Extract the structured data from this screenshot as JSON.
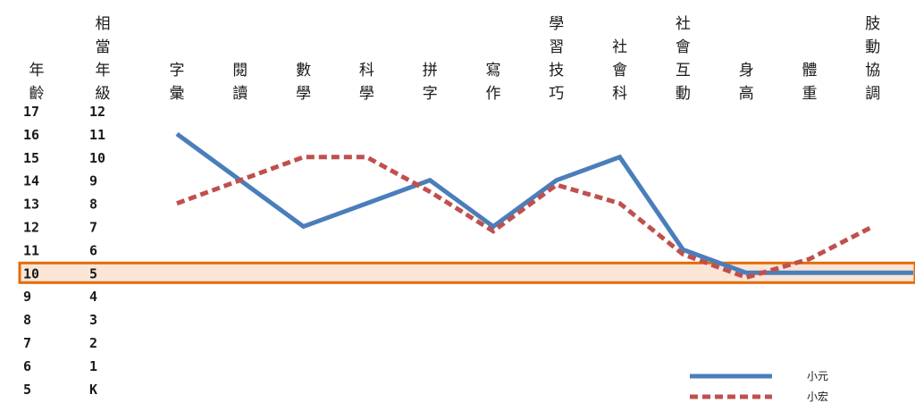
{
  "chart_data": {
    "type": "line",
    "row_headers": [
      {
        "chars": [
          "年",
          "齡"
        ]
      },
      {
        "chars": [
          "相",
          "當",
          "年",
          "級"
        ]
      }
    ],
    "rows": [
      {
        "age": "17",
        "grade": "12"
      },
      {
        "age": "16",
        "grade": "11"
      },
      {
        "age": "15",
        "grade": "10"
      },
      {
        "age": "14",
        "grade": "9"
      },
      {
        "age": "13",
        "grade": "8"
      },
      {
        "age": "12",
        "grade": "7"
      },
      {
        "age": "11",
        "grade": "6"
      },
      {
        "age": "10",
        "grade": "5"
      },
      {
        "age": "9",
        "grade": "4"
      },
      {
        "age": "8",
        "grade": "3"
      },
      {
        "age": "7",
        "grade": "2"
      },
      {
        "age": "6",
        "grade": "1"
      },
      {
        "age": "5",
        "grade": "K"
      }
    ],
    "categories": [
      {
        "label": "字彙",
        "chars": [
          "字",
          "彙"
        ]
      },
      {
        "label": "閱讀",
        "chars": [
          "閱",
          "讀"
        ]
      },
      {
        "label": "數學",
        "chars": [
          "數",
          "學"
        ]
      },
      {
        "label": "科學",
        "chars": [
          "科",
          "學"
        ]
      },
      {
        "label": "拼字",
        "chars": [
          "拼",
          "字"
        ]
      },
      {
        "label": "寫作",
        "chars": [
          "寫",
          "作"
        ]
      },
      {
        "label": "學習技巧",
        "chars": [
          "學",
          "習",
          "技",
          "巧"
        ]
      },
      {
        "label": "社會科",
        "chars": [
          "社",
          "會",
          "科"
        ]
      },
      {
        "label": "社會互動",
        "chars": [
          "社",
          "會",
          "互",
          "動"
        ]
      },
      {
        "label": "身高",
        "chars": [
          "身",
          "高"
        ]
      },
      {
        "label": "體重",
        "chars": [
          "體",
          "重"
        ]
      },
      {
        "label": "肢動協調",
        "chars": [
          "肢",
          "動",
          "協",
          "調"
        ]
      }
    ],
    "y_unit": "age",
    "ylim": [
      5,
      17
    ],
    "highlight_age": 10,
    "series": [
      {
        "name": "小元",
        "color": "#4a7ebb",
        "style": "solid",
        "values": [
          16,
          14,
          12,
          13,
          14,
          12,
          14,
          15,
          11,
          10,
          10,
          10
        ]
      },
      {
        "name": "小宏",
        "color": "#c0504d",
        "style": "dashed",
        "values": [
          13,
          14,
          15,
          15,
          13.5,
          11.8,
          13.8,
          13,
          10.8,
          9.8,
          10.6,
          12
        ]
      }
    ],
    "legend_position": "bottom-right",
    "highlight_color": "#e36c09",
    "highlight_fill": "#fbe5d6"
  }
}
